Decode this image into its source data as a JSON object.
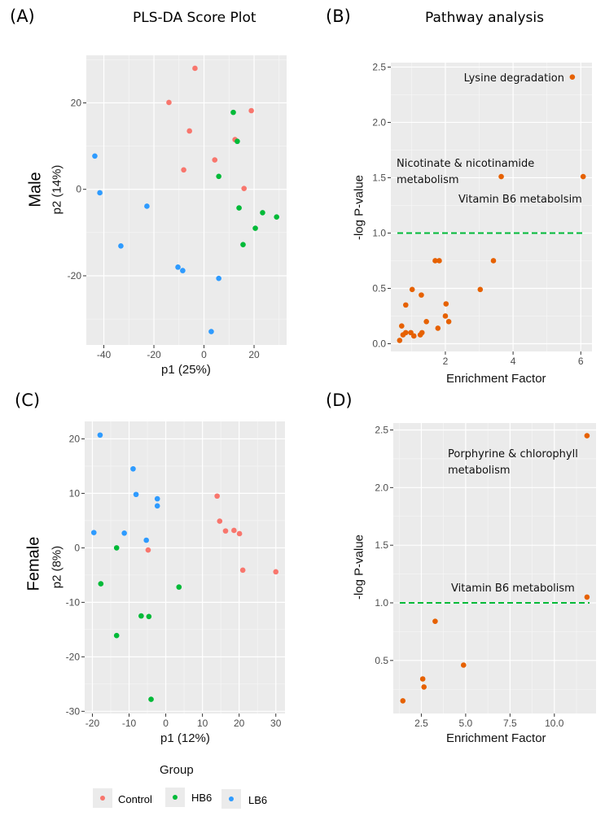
{
  "labels": {
    "A": "(A)",
    "B": "(B)",
    "C": "(C)",
    "D": "(D)"
  },
  "titles": {
    "A": "PLS-DA Score Plot",
    "B": "Pathway analysis"
  },
  "row_labels": {
    "male": "Male",
    "female": "Female"
  },
  "legend": {
    "title": "Group",
    "items": [
      {
        "name": "Control",
        "color": "#f8766d"
      },
      {
        "name": "HB6",
        "color": "#00ba38"
      },
      {
        "name": "LB6",
        "color": "#2e9bff"
      }
    ]
  },
  "chart_data": [
    {
      "type": "scatter",
      "panel": "A",
      "title": "PLS-DA Score Plot",
      "xlabel": "p1 (25%)",
      "ylabel": "p2 (14%)",
      "xlim": [
        -47,
        33
      ],
      "ylim": [
        -36,
        31
      ],
      "xticks": [
        -40,
        -20,
        0,
        20
      ],
      "yticks": [
        -20,
        0,
        20
      ],
      "grid": true,
      "series": [
        {
          "name": "Control",
          "color": "#f8766d",
          "points": [
            [
              -3.6,
              28
            ],
            [
              -14,
              20.1
            ],
            [
              -5.8,
              13.5
            ],
            [
              18.9,
              18.2
            ],
            [
              12.4,
              11.5
            ],
            [
              4.3,
              6.8
            ],
            [
              -8.1,
              4.5
            ],
            [
              16,
              0.2
            ]
          ]
        },
        {
          "name": "HB6",
          "color": "#00ba38",
          "points": [
            [
              11.7,
              17.8
            ],
            [
              13.3,
              11.1
            ],
            [
              5.9,
              3
            ],
            [
              14,
              -4.3
            ],
            [
              23.4,
              -5.4
            ],
            [
              29,
              -6.4
            ],
            [
              20.5,
              -9
            ],
            [
              15.6,
              -12.8
            ]
          ]
        },
        {
          "name": "LB6",
          "color": "#2e9bff",
          "points": [
            [
              -43.6,
              7.7
            ],
            [
              -41.6,
              -0.8
            ],
            [
              -22.8,
              -3.9
            ],
            [
              -33.2,
              -13.1
            ],
            [
              -10.4,
              -18
            ],
            [
              -8.5,
              -18.8
            ],
            [
              5.9,
              -20.6
            ],
            [
              2.9,
              -32.9
            ]
          ]
        }
      ]
    },
    {
      "type": "scatter",
      "panel": "B",
      "title": "Pathway analysis",
      "xlabel": "Enrichment Factor",
      "ylabel": "-log P-value",
      "xlim": [
        0.39,
        6.33
      ],
      "ylim": [
        -0.07,
        2.54
      ],
      "xticks": [
        2,
        4,
        6
      ],
      "yticks": [
        0,
        0.5,
        1,
        1.5,
        2,
        2.5
      ],
      "tick_format": 1,
      "grid": true,
      "threshold": 1.0,
      "threshold_color": "#00ba38",
      "series": [
        {
          "name": "pathways",
          "color": "#e66100",
          "points": [
            [
              5.75,
              2.41
            ],
            [
              3.65,
              1.51
            ],
            [
              6.07,
              1.51
            ],
            [
              1.7,
              0.75
            ],
            [
              1.82,
              0.75
            ],
            [
              3.42,
              0.75
            ],
            [
              3.03,
              0.49
            ],
            [
              1.02,
              0.49
            ],
            [
              1.29,
              0.44
            ],
            [
              0.83,
              0.35
            ],
            [
              2.02,
              0.36
            ],
            [
              2.0,
              0.25
            ],
            [
              2.1,
              0.2
            ],
            [
              1.44,
              0.2
            ],
            [
              0.71,
              0.16
            ],
            [
              1.78,
              0.14
            ],
            [
              0.75,
              0.08
            ],
            [
              0.83,
              0.1
            ],
            [
              0.98,
              0.1
            ],
            [
              1.07,
              0.07
            ],
            [
              1.26,
              0.08
            ],
            [
              1.31,
              0.1
            ],
            [
              0.65,
              0.03
            ]
          ]
        }
      ],
      "annotations": [
        "Lysine degradation",
        "Nicotinate & nicotinamide",
        "metabolism",
        "Vitamin B6 metabolsim"
      ]
    },
    {
      "type": "scatter",
      "panel": "C",
      "xlabel": "p1 (12%)",
      "ylabel": "p2 (8%)",
      "xlim": [
        -22.1,
        32.5
      ],
      "ylim": [
        -30.4,
        23.2
      ],
      "xticks": [
        -20,
        -10,
        0,
        10,
        20,
        30
      ],
      "yticks": [
        -30,
        -20,
        -10,
        0,
        10,
        20
      ],
      "grid": true,
      "series": [
        {
          "name": "Control",
          "color": "#f8766d",
          "points": [
            [
              14,
              9.5
            ],
            [
              14.7,
              4.9
            ],
            [
              16.3,
              3.1
            ],
            [
              18.6,
              3.2
            ],
            [
              20.1,
              2.6
            ],
            [
              -4.8,
              -0.4
            ],
            [
              21,
              -4.1
            ],
            [
              30,
              -4.4
            ]
          ]
        },
        {
          "name": "HB6",
          "color": "#00ba38",
          "points": [
            [
              -13.4,
              0
            ],
            [
              -17.7,
              -6.6
            ],
            [
              3.6,
              -7.2
            ],
            [
              -6.7,
              -12.5
            ],
            [
              -4.6,
              -12.6
            ],
            [
              -13.4,
              -16.1
            ],
            [
              -4,
              -27.8
            ]
          ]
        },
        {
          "name": "LB6",
          "color": "#2e9bff",
          "points": [
            [
              -17.9,
              20.7
            ],
            [
              -8.9,
              14.5
            ],
            [
              -8.1,
              9.8
            ],
            [
              -2.3,
              9
            ],
            [
              -2.3,
              7.7
            ],
            [
              -19.6,
              2.8
            ],
            [
              -11.3,
              2.7
            ],
            [
              -5.3,
              1.4
            ]
          ]
        }
      ]
    },
    {
      "type": "scatter",
      "panel": "D",
      "xlabel": "Enrichment Factor",
      "ylabel": "-log P-value",
      "xlim": [
        0.92,
        12.35
      ],
      "ylim": [
        0.04,
        2.56
      ],
      "xticks": [
        2.5,
        5,
        7.5,
        10
      ],
      "yticks": [
        0.5,
        1,
        1.5,
        2,
        2.5
      ],
      "tick_format": 1,
      "grid": true,
      "threshold": 1.0,
      "threshold_color": "#00ba38",
      "series": [
        {
          "name": "pathways",
          "color": "#e66100",
          "points": [
            [
              11.84,
              2.45
            ],
            [
              11.84,
              1.05
            ],
            [
              3.28,
              0.84
            ],
            [
              4.88,
              0.46
            ],
            [
              2.58,
              0.34
            ],
            [
              2.65,
              0.27
            ],
            [
              1.46,
              0.15
            ]
          ]
        }
      ],
      "annotations": [
        "Porphyrine & chlorophyll",
        "metabolism",
        "Vitamin B6 metabolism"
      ]
    }
  ]
}
